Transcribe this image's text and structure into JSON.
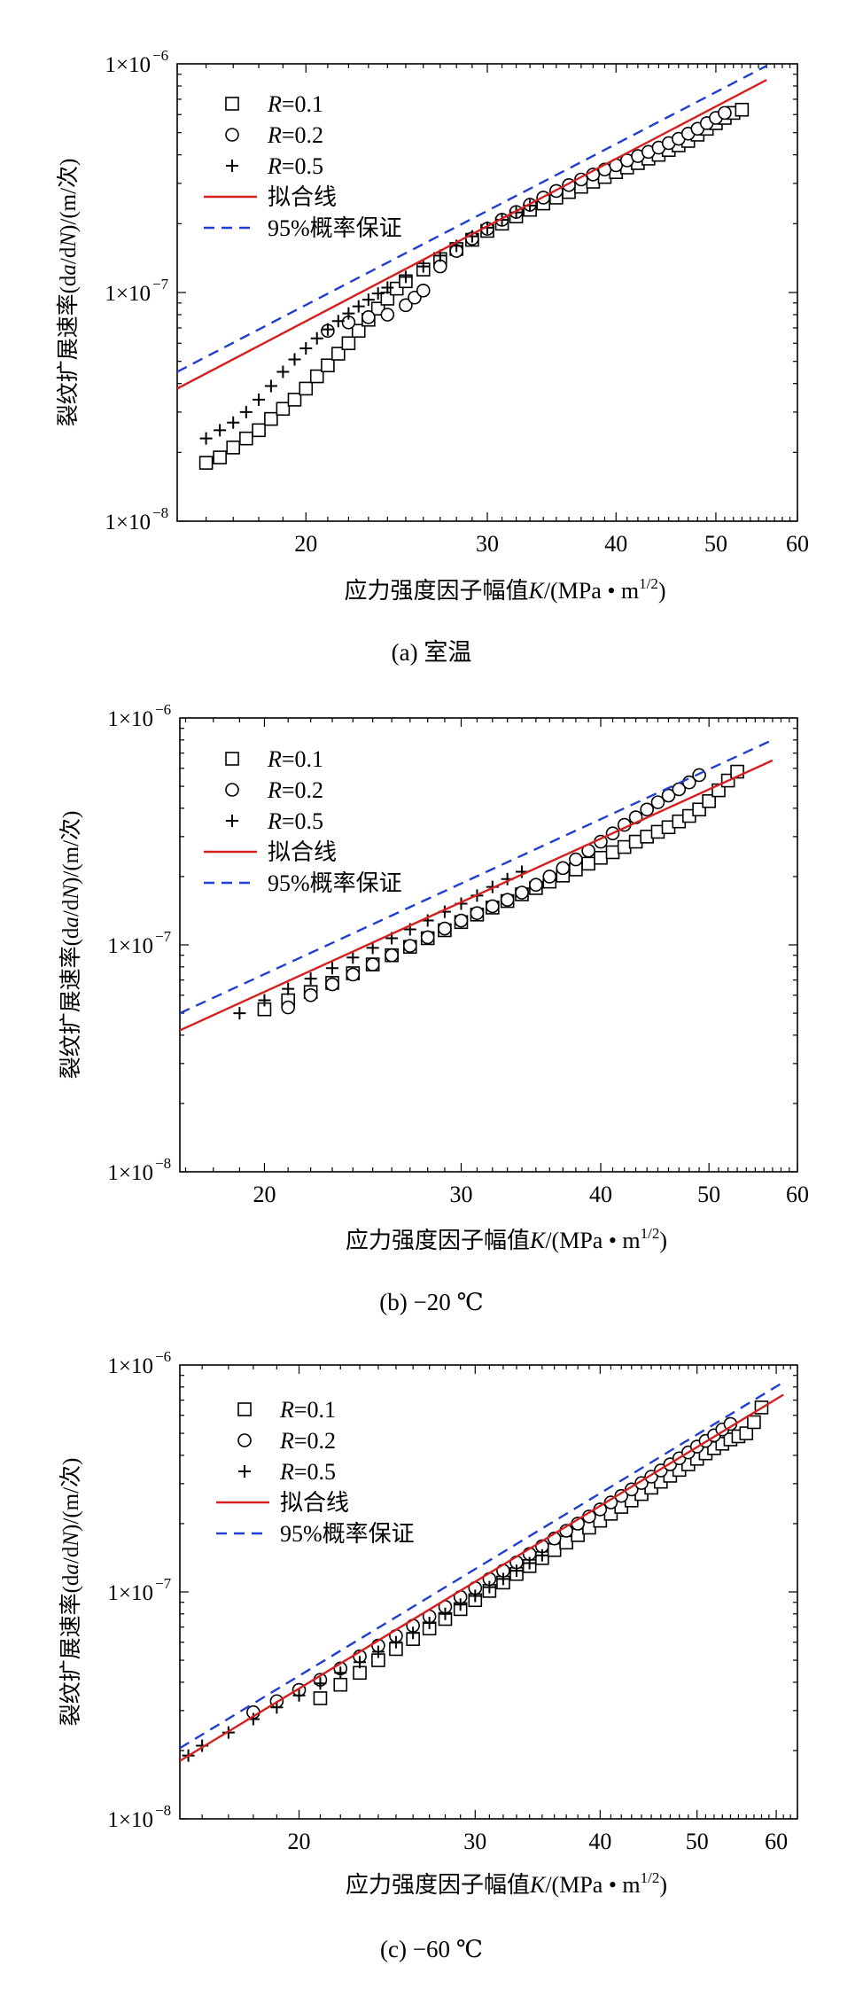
{
  "chart_data": [
    {
      "type": "scatter",
      "caption": "(a)  室温",
      "xlabel": {
        "main": "应力强度因子幅值",
        "sym": "K",
        "unit": "/(MPa • m",
        "sup": "1/2",
        "close": ")"
      },
      "ylabel": {
        "main": "裂纹扩展速率(d",
        "a": "a",
        "mid": "/d",
        "n": "N",
        "end": ")/(m/次)"
      },
      "xscale": "log",
      "yscale": "log",
      "xlim": [
        15,
        60
      ],
      "ylim": [
        1e-08,
        1e-06
      ],
      "xticks": [
        20,
        30,
        40,
        50,
        60
      ],
      "yticks": [
        {
          "value": 1e-08,
          "label": "1×10",
          "exp": "−8"
        },
        {
          "value": 1e-07,
          "label": "1×10",
          "exp": "−7"
        },
        {
          "value": 1e-06,
          "label": "1×10",
          "exp": "−6"
        }
      ],
      "legend_position": "top-left",
      "legend": [
        {
          "kind": "square",
          "sym": "R",
          "rest": "=0.1"
        },
        {
          "kind": "circle",
          "sym": "R",
          "rest": "=0.2"
        },
        {
          "kind": "plus",
          "sym": "R",
          "rest": "=0.5"
        },
        {
          "kind": "solid",
          "label": "拟合线"
        },
        {
          "kind": "dashed",
          "label": "95%概率保证"
        }
      ],
      "colors": {
        "fit": "#d62020",
        "guarantee": "#1f3fd0",
        "markers": "#000000"
      },
      "series": [
        {
          "name": "R=0.1",
          "marker": "square",
          "x": [
            16.0,
            16.5,
            17.0,
            17.5,
            18.0,
            18.5,
            19.0,
            19.5,
            20.0,
            20.5,
            21.0,
            21.5,
            22.0,
            22.5,
            23.0,
            23.5,
            24.0,
            24.5,
            25.0,
            26.0,
            27.0,
            28.0,
            29.0,
            30.0,
            31.0,
            32.0,
            33.0,
            34.0,
            35.0,
            36.0,
            37.0,
            38.0,
            39.0,
            40.0,
            41.0,
            42.0,
            43.0,
            44.0,
            45.0,
            46.0,
            47.0,
            48.0,
            49.0,
            50.0,
            51.0,
            52.0,
            53.0
          ],
          "y": [
            1.8e-08,
            1.9e-08,
            2.1e-08,
            2.3e-08,
            2.5e-08,
            2.8e-08,
            3.1e-08,
            3.4e-08,
            3.8e-08,
            4.3e-08,
            4.8e-08,
            5.4e-08,
            6e-08,
            6.8e-08,
            7.6e-08,
            8.5e-08,
            9.4e-08,
            1.04e-07,
            1.12e-07,
            1.26e-07,
            1.4e-07,
            1.55e-07,
            1.7e-07,
            1.86e-07,
            2e-07,
            2.15e-07,
            2.3e-07,
            2.45e-07,
            2.6e-07,
            2.75e-07,
            2.9e-07,
            3.05e-07,
            3.2e-07,
            3.36e-07,
            3.52e-07,
            3.68e-07,
            3.85e-07,
            4e-07,
            4.2e-07,
            4.4e-07,
            4.6e-07,
            4.9e-07,
            5.2e-07,
            5.5e-07,
            5.8e-07,
            6.1e-07,
            6.3e-07
          ]
        },
        {
          "name": "R=0.2",
          "marker": "circle",
          "x": [
            21.0,
            22.0,
            23.0,
            24.0,
            25.0,
            25.5,
            26.0,
            27.0,
            28.0,
            29.0,
            30.0,
            31.0,
            32.0,
            33.0,
            34.0,
            35.0,
            36.0,
            37.0,
            38.0,
            39.0,
            40.0,
            41.0,
            42.0,
            43.0,
            44.0,
            45.0,
            46.0,
            47.0,
            48.0,
            49.0,
            50.0,
            51.0
          ],
          "y": [
            6.8e-08,
            7.4e-08,
            7.8e-08,
            8e-08,
            8.8e-08,
            9.5e-08,
            1.02e-07,
            1.3e-07,
            1.52e-07,
            1.72e-07,
            1.9e-07,
            2.08e-07,
            2.25e-07,
            2.42e-07,
            2.6e-07,
            2.78e-07,
            2.95e-07,
            3.12e-07,
            3.28e-07,
            3.45e-07,
            3.6e-07,
            3.78e-07,
            3.95e-07,
            4.12e-07,
            4.3e-07,
            4.5e-07,
            4.7e-07,
            4.95e-07,
            5.2e-07,
            5.5e-07,
            5.8e-07,
            6.1e-07
          ]
        },
        {
          "name": "R=0.5",
          "marker": "plus",
          "x": [
            16.0,
            16.5,
            17.0,
            17.5,
            18.0,
            18.5,
            19.0,
            19.5,
            20.0,
            20.5,
            21.0,
            21.5,
            22.0,
            22.5,
            23.0,
            23.5,
            24.0,
            25.0,
            26.0,
            27.0,
            28.0,
            29.0,
            30.0,
            31.0,
            32.0,
            33.0
          ],
          "y": [
            2.3e-08,
            2.5e-08,
            2.7e-08,
            3e-08,
            3.4e-08,
            3.9e-08,
            4.5e-08,
            5.1e-08,
            5.7e-08,
            6.3e-08,
            6.9e-08,
            7.5e-08,
            8.1e-08,
            8.7e-08,
            9.3e-08,
            9.9e-08,
            1.05e-07,
            1.17e-07,
            1.3e-07,
            1.45e-07,
            1.6e-07,
            1.76e-07,
            1.92e-07,
            2.08e-07,
            2.24e-07,
            2.4e-07
          ]
        }
      ],
      "lines": [
        {
          "name": "拟合线",
          "style": "solid",
          "x": [
            15.0,
            56.0
          ],
          "y": [
            3.8e-08,
            8.5e-07
          ]
        },
        {
          "name": "95%概率保证",
          "style": "dashed",
          "x": [
            15.0,
            56.0
          ],
          "y": [
            4.5e-08,
            9.8e-07
          ]
        }
      ]
    },
    {
      "type": "scatter",
      "caption": "(b) −20 ℃",
      "xlabel": {
        "main": "应力强度因子幅值",
        "sym": "K",
        "unit": "/(MPa • m",
        "sup": "1/2",
        "close": ")"
      },
      "ylabel": {
        "main": "裂纹扩展速率(d",
        "a": "a",
        "mid": "/d",
        "n": "N",
        "end": ")/(m/次)"
      },
      "xscale": "log",
      "yscale": "log",
      "xlim": [
        16.8,
        60
      ],
      "ylim": [
        1e-08,
        1e-06
      ],
      "xticks": [
        20,
        30,
        40,
        50,
        60
      ],
      "yticks": [
        {
          "value": 1e-08,
          "label": "1×10",
          "exp": "−8"
        },
        {
          "value": 1e-07,
          "label": "1×10",
          "exp": "−7"
        },
        {
          "value": 1e-06,
          "label": "1×10",
          "exp": "−6"
        }
      ],
      "legend_position": "top-left",
      "legend": [
        {
          "kind": "square",
          "sym": "R",
          "rest": "=0.1"
        },
        {
          "kind": "circle",
          "sym": "R",
          "rest": "=0.2"
        },
        {
          "kind": "plus",
          "sym": "R",
          "rest": "=0.5"
        },
        {
          "kind": "solid",
          "label": "拟合线"
        },
        {
          "kind": "dashed",
          "label": "95%概率保证"
        }
      ],
      "colors": {
        "fit": "#d62020",
        "guarantee": "#1f3fd0",
        "markers": "#000000"
      },
      "series": [
        {
          "name": "R=0.1",
          "marker": "square",
          "x": [
            20.0,
            21.0,
            22.0,
            23.0,
            24.0,
            25.0,
            26.0,
            27.0,
            28.0,
            29.0,
            30.0,
            31.0,
            32.0,
            33.0,
            34.0,
            35.0,
            36.0,
            37.0,
            38.0,
            39.0,
            40.0,
            41.0,
            42.0,
            43.0,
            44.0,
            45.0,
            46.0,
            47.0,
            48.0,
            49.0,
            50.0,
            51.0,
            52.0,
            53.0
          ],
          "y": [
            5.2e-08,
            5.7e-08,
            6.2e-08,
            6.8e-08,
            7.5e-08,
            8.2e-08,
            9e-08,
            9.8e-08,
            1.07e-07,
            1.16e-07,
            1.26e-07,
            1.36e-07,
            1.46e-07,
            1.56e-07,
            1.67e-07,
            1.78e-07,
            1.9e-07,
            2.02e-07,
            2.15e-07,
            2.28e-07,
            2.42e-07,
            2.56e-07,
            2.7e-07,
            2.85e-07,
            3e-07,
            3.15e-07,
            3.3e-07,
            3.5e-07,
            3.7e-07,
            3.95e-07,
            4.3e-07,
            4.8e-07,
            5.3e-07,
            5.8e-07
          ]
        },
        {
          "name": "R=0.2",
          "marker": "circle",
          "x": [
            21.0,
            22.0,
            23.0,
            24.0,
            25.0,
            26.0,
            27.0,
            28.0,
            29.0,
            30.0,
            31.0,
            32.0,
            33.0,
            34.0,
            35.0,
            36.0,
            37.0,
            38.0,
            39.0,
            40.0,
            41.0,
            42.0,
            43.0,
            44.0,
            45.0,
            46.0,
            47.0,
            48.0,
            49.0
          ],
          "y": [
            5.3e-08,
            6e-08,
            6.7e-08,
            7.4e-08,
            8.2e-08,
            9e-08,
            9.9e-08,
            1.08e-07,
            1.18e-07,
            1.28e-07,
            1.38e-07,
            1.48e-07,
            1.58e-07,
            1.7e-07,
            1.84e-07,
            2e-07,
            2.18e-07,
            2.38e-07,
            2.6e-07,
            2.85e-07,
            3.1e-07,
            3.38e-07,
            3.65e-07,
            3.95e-07,
            4.25e-07,
            4.55e-07,
            4.85e-07,
            5.2e-07,
            5.6e-07
          ]
        },
        {
          "name": "R=0.5",
          "marker": "plus",
          "x": [
            19.0,
            20.0,
            21.0,
            22.0,
            23.0,
            24.0,
            25.0,
            26.0,
            27.0,
            28.0,
            29.0,
            30.0,
            31.0,
            32.0,
            33.0,
            34.0
          ],
          "y": [
            5e-08,
            5.7e-08,
            6.4e-08,
            7.1e-08,
            7.9e-08,
            8.8e-08,
            9.7e-08,
            1.07e-07,
            1.17e-07,
            1.28e-07,
            1.4e-07,
            1.52e-07,
            1.65e-07,
            1.8e-07,
            1.95e-07,
            2.1e-07
          ]
        }
      ],
      "lines": [
        {
          "name": "拟合线",
          "style": "solid",
          "x": [
            16.8,
            57.0
          ],
          "y": [
            4.2e-08,
            6.5e-07
          ]
        },
        {
          "name": "95%概率保证",
          "style": "dashed",
          "x": [
            16.8,
            57.0
          ],
          "y": [
            5e-08,
            8e-07
          ]
        }
      ]
    },
    {
      "type": "scatter",
      "caption": "(c) −60 ℃",
      "xlabel": {
        "main": "应力强度因子幅值",
        "sym": "K",
        "unit": "/(MPa • m",
        "sup": "1/2",
        "close": ")"
      },
      "ylabel": {
        "main": "裂纹扩展速率(d",
        "a": "a",
        "mid": "/d",
        "n": "N",
        "end": ")/(m/次)"
      },
      "xscale": "log",
      "yscale": "log",
      "xlim": [
        15.2,
        63
      ],
      "ylim": [
        1e-08,
        1e-06
      ],
      "xticks": [
        20,
        30,
        40,
        50,
        60
      ],
      "yticks": [
        {
          "value": 1e-08,
          "label": "1×10",
          "exp": "−8"
        },
        {
          "value": 1e-07,
          "label": "1×10",
          "exp": "−7"
        },
        {
          "value": 1e-06,
          "label": "1×10",
          "exp": "−6"
        }
      ],
      "legend_position": "top-left",
      "legend": [
        {
          "kind": "square",
          "sym": "R",
          "rest": "=0.1"
        },
        {
          "kind": "circle",
          "sym": "R",
          "rest": "=0.2"
        },
        {
          "kind": "plus",
          "sym": "R",
          "rest": "=0.5"
        },
        {
          "kind": "solid",
          "label": "拟合线"
        },
        {
          "kind": "dashed",
          "label": "95%概率保证"
        }
      ],
      "colors": {
        "fit": "#d62020",
        "guarantee": "#1f3fd0",
        "markers": "#000000"
      },
      "series": [
        {
          "name": "R=0.1",
          "marker": "square",
          "x": [
            21.0,
            22.0,
            23.0,
            24.0,
            25.0,
            26.0,
            27.0,
            28.0,
            29.0,
            30.0,
            31.0,
            32.0,
            33.0,
            34.0,
            35.0,
            36.0,
            37.0,
            38.0,
            39.0,
            40.0,
            41.0,
            42.0,
            43.0,
            44.0,
            45.0,
            46.0,
            47.0,
            48.0,
            49.0,
            50.0,
            51.0,
            52.0,
            53.0,
            54.0,
            55.0,
            56.0,
            57.0,
            58.0
          ],
          "y": [
            3.4e-08,
            3.9e-08,
            4.4e-08,
            5e-08,
            5.6e-08,
            6.2e-08,
            6.9e-08,
            7.6e-08,
            8.4e-08,
            9.2e-08,
            1.01e-07,
            1.1e-07,
            1.2e-07,
            1.3e-07,
            1.41e-07,
            1.53e-07,
            1.65e-07,
            1.78e-07,
            1.92e-07,
            2.06e-07,
            2.21e-07,
            2.37e-07,
            2.53e-07,
            2.7e-07,
            2.88e-07,
            3.06e-07,
            3.25e-07,
            3.45e-07,
            3.65e-07,
            3.86e-07,
            4.08e-07,
            4.3e-07,
            4.5e-07,
            4.7e-07,
            4.85e-07,
            5e-07,
            5.6e-07,
            6.5e-07
          ]
        },
        {
          "name": "R=0.2",
          "marker": "circle",
          "x": [
            18.0,
            19.0,
            20.0,
            21.0,
            22.0,
            23.0,
            24.0,
            25.0,
            26.0,
            27.0,
            28.0,
            29.0,
            30.0,
            31.0,
            32.0,
            33.0,
            34.0,
            35.0,
            36.0,
            37.0,
            38.0,
            39.0,
            40.0,
            41.0,
            42.0,
            43.0,
            44.0,
            45.0,
            46.0,
            47.0,
            48.0,
            49.0,
            50.0,
            51.0,
            52.0,
            53.0,
            54.0
          ],
          "y": [
            2.95e-08,
            3.3e-08,
            3.7e-08,
            4.1e-08,
            4.6e-08,
            5.2e-08,
            5.8e-08,
            6.4e-08,
            7.1e-08,
            7.8e-08,
            8.6e-08,
            9.5e-08,
            1.04e-07,
            1.14e-07,
            1.24e-07,
            1.35e-07,
            1.47e-07,
            1.59e-07,
            1.72e-07,
            1.86e-07,
            2e-07,
            2.15e-07,
            2.31e-07,
            2.48e-07,
            2.65e-07,
            2.83e-07,
            3.02e-07,
            3.22e-07,
            3.43e-07,
            3.65e-07,
            3.88e-07,
            4.12e-07,
            4.37e-07,
            4.63e-07,
            4.9e-07,
            5.2e-07,
            5.5e-07
          ]
        },
        {
          "name": "R=0.5",
          "marker": "plus",
          "x": [
            15.5,
            16.0,
            17.0,
            18.0,
            19.0,
            20.0,
            21.0,
            22.0,
            23.0,
            24.0,
            25.0,
            26.0,
            27.0,
            28.0,
            29.0,
            30.0,
            31.0,
            32.0,
            33.0,
            34.0,
            35.0
          ],
          "y": [
            1.9e-08,
            2.1e-08,
            2.4e-08,
            2.75e-08,
            3.1e-08,
            3.5e-08,
            3.95e-08,
            4.4e-08,
            4.9e-08,
            5.45e-08,
            6e-08,
            6.6e-08,
            7.3e-08,
            8e-08,
            8.8e-08,
            9.6e-08,
            1.05e-07,
            1.14e-07,
            1.24e-07,
            1.34e-07,
            1.45e-07
          ]
        }
      ],
      "lines": [
        {
          "name": "拟合线",
          "style": "solid",
          "x": [
            15.2,
            61.0
          ],
          "y": [
            1.8e-08,
            7.4e-07
          ]
        },
        {
          "name": "95%概率保证",
          "style": "dashed",
          "x": [
            15.2,
            61.0
          ],
          "y": [
            2.05e-08,
            8.4e-07
          ]
        }
      ]
    }
  ]
}
